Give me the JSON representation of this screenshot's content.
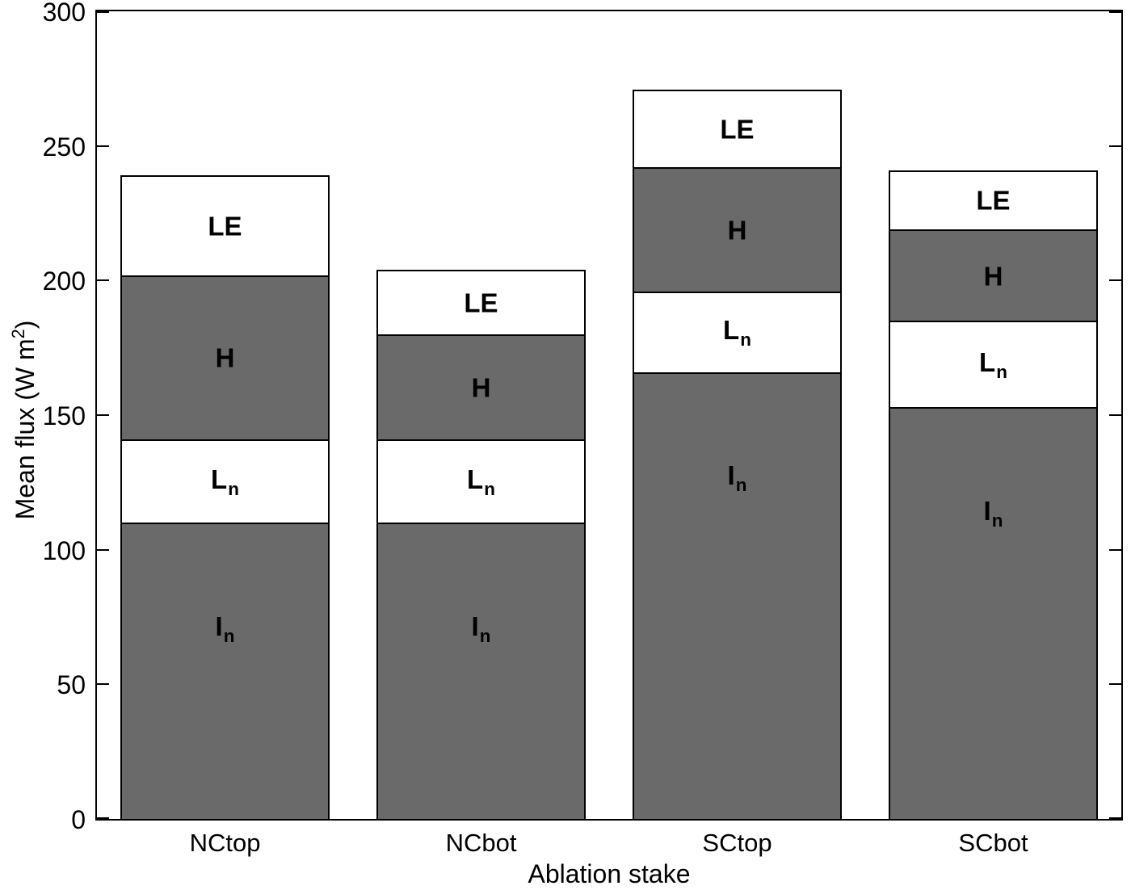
{
  "figure": {
    "background": "#ffffff",
    "axis_color": "#000000",
    "bar_fill_gray": "#6a6a6a",
    "bar_fill_white": "#ffffff"
  },
  "chart_data": {
    "type": "bar",
    "stacked": true,
    "title": "",
    "xlabel": "Ablation stake",
    "ylabel": "Mean flux (W m²)",
    "ylabel_parts": {
      "pre": "Mean flux (W m",
      "sup": "2",
      "post": ")"
    },
    "ylim": [
      0,
      300
    ],
    "yticks": [
      0,
      50,
      100,
      150,
      200,
      250,
      300
    ],
    "grid": false,
    "legend": false,
    "bar_width_fraction": 0.82,
    "categories": [
      "NCtop",
      "NCbot",
      "SCtop",
      "SCbot"
    ],
    "series": [
      {
        "name": "I_n",
        "label_main": "I",
        "label_sub": "n",
        "fill": "#6a6a6a",
        "text_color": "#000000",
        "label_align": "near-top",
        "values": [
          110,
          110,
          166,
          153
        ]
      },
      {
        "name": "L_n",
        "label_main": "L",
        "label_sub": "n",
        "fill": "#ffffff",
        "text_color": "#000000",
        "label_align": "center",
        "values": [
          31,
          31,
          30,
          32
        ]
      },
      {
        "name": "H",
        "label_main": "H",
        "label_sub": "",
        "fill": "#6a6a6a",
        "text_color": "#000000",
        "label_align": "center",
        "values": [
          61,
          39,
          46,
          34
        ]
      },
      {
        "name": "LE",
        "label_main": "LE",
        "label_sub": "",
        "fill": "#ffffff",
        "text_color": "#000000",
        "label_align": "center",
        "values": [
          37,
          24,
          29,
          22
        ]
      }
    ]
  }
}
